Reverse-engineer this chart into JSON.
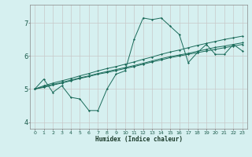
{
  "xlabel": "Humidex (Indice chaleur)",
  "bg_color": "#d6f0f0",
  "grid_color": "#c8c8c8",
  "line_color": "#1a6b5a",
  "xlim": [
    -0.5,
    23.5
  ],
  "ylim": [
    3.8,
    7.55
  ],
  "xticks": [
    0,
    1,
    2,
    3,
    4,
    5,
    6,
    7,
    8,
    9,
    10,
    11,
    12,
    13,
    14,
    15,
    16,
    17,
    18,
    19,
    20,
    21,
    22,
    23
  ],
  "yticks": [
    4,
    5,
    6,
    7
  ],
  "series": [
    [
      5.0,
      5.3,
      4.9,
      5.1,
      4.75,
      4.7,
      4.35,
      4.35,
      5.0,
      5.45,
      5.55,
      6.5,
      7.15,
      7.1,
      7.15,
      6.9,
      6.65,
      5.8,
      6.1,
      6.35,
      6.05,
      6.05,
      6.35,
      6.15
    ],
    [
      5.0,
      5.05,
      5.12,
      5.18,
      5.25,
      5.32,
      5.38,
      5.45,
      5.5,
      5.56,
      5.62,
      5.68,
      5.75,
      5.82,
      5.88,
      5.95,
      6.0,
      6.05,
      6.1,
      6.15,
      6.2,
      6.25,
      6.3,
      6.35
    ],
    [
      5.0,
      5.07,
      5.14,
      5.2,
      5.27,
      5.34,
      5.4,
      5.47,
      5.53,
      5.59,
      5.65,
      5.71,
      5.78,
      5.85,
      5.92,
      5.98,
      6.03,
      6.08,
      6.14,
      6.2,
      6.26,
      6.3,
      6.35,
      6.4
    ],
    [
      5.0,
      5.1,
      5.18,
      5.25,
      5.32,
      5.4,
      5.47,
      5.55,
      5.62,
      5.68,
      5.75,
      5.82,
      5.9,
      5.97,
      6.05,
      6.12,
      6.18,
      6.25,
      6.32,
      6.38,
      6.44,
      6.5,
      6.55,
      6.6
    ]
  ]
}
